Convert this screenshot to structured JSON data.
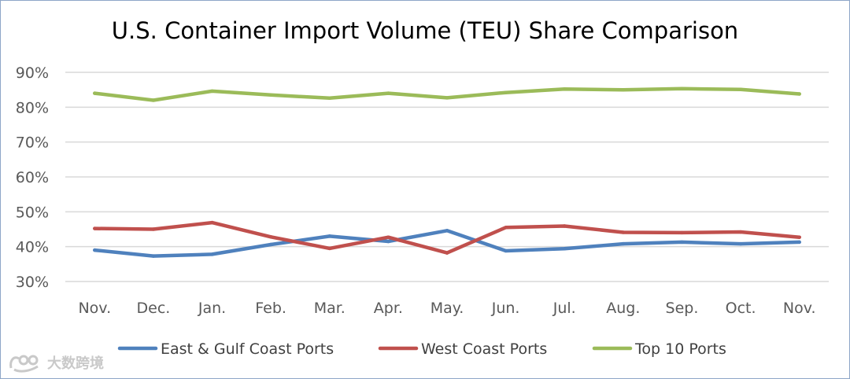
{
  "chart_data": {
    "type": "line",
    "title": "U.S. Container Import Volume (TEU) Share Comparison",
    "categories": [
      "Nov.",
      "Dec.",
      "Jan.",
      "Feb.",
      "Mar.",
      "Apr.",
      "May.",
      "Jun.",
      "Jul.",
      "Aug.",
      "Sep.",
      "Oct.",
      "Nov."
    ],
    "series": [
      {
        "name": "East & Gulf Coast Ports",
        "color": "#4f81bd",
        "values": [
          39.0,
          37.3,
          37.8,
          40.6,
          43.0,
          41.5,
          44.6,
          38.8,
          39.4,
          40.8,
          41.3,
          40.8,
          41.3
        ]
      },
      {
        "name": "West Coast Ports",
        "color": "#c0504d",
        "values": [
          45.2,
          45.0,
          46.9,
          42.8,
          39.5,
          42.7,
          38.2,
          45.5,
          45.9,
          44.1,
          44.0,
          44.2,
          42.7
        ]
      },
      {
        "name": "Top 10 Ports",
        "color": "#9bbb59",
        "values": [
          84.0,
          82.0,
          84.6,
          83.5,
          82.6,
          84.0,
          82.7,
          84.2,
          85.2,
          85.0,
          85.3,
          85.1,
          83.8
        ]
      }
    ],
    "ylim": [
      30,
      90
    ],
    "yticks": [
      "30%",
      "40%",
      "50%",
      "60%",
      "70%",
      "80%",
      "90%"
    ],
    "ytick_values": [
      30,
      40,
      50,
      60,
      70,
      80,
      90
    ],
    "grid": true,
    "legend": "bottom"
  },
  "watermark": {
    "text": "大数跨境"
  }
}
